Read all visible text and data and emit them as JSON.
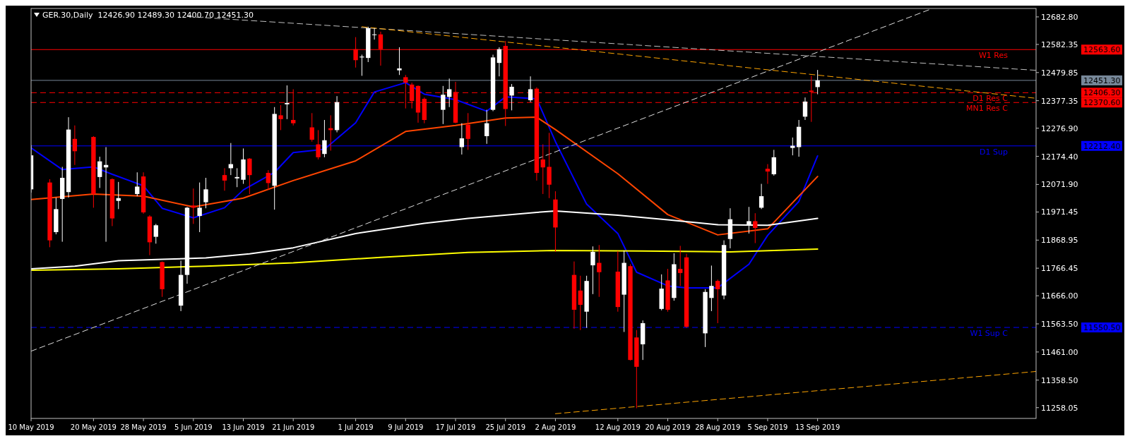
{
  "chart_data": {
    "type": "candlestick",
    "title": "GER.30,Daily  12426.90 12489.30 12400.70 12451.30",
    "x": [
      "2019-05-10",
      "2019-05-13",
      "2019-05-14",
      "2019-05-15",
      "2019-05-16",
      "2019-05-17",
      "2019-05-20",
      "2019-05-21",
      "2019-05-22",
      "2019-05-23",
      "2019-05-24",
      "2019-05-27",
      "2019-05-28",
      "2019-05-29",
      "2019-05-30",
      "2019-05-31",
      "2019-06-03",
      "2019-06-04",
      "2019-06-05",
      "2019-06-06",
      "2019-06-07",
      "2019-06-10",
      "2019-06-11",
      "2019-06-12",
      "2019-06-13",
      "2019-06-14",
      "2019-06-17",
      "2019-06-18",
      "2019-06-19",
      "2019-06-20",
      "2019-06-21",
      "2019-06-24",
      "2019-06-25",
      "2019-06-26",
      "2019-06-27",
      "2019-06-28",
      "2019-07-01",
      "2019-07-02",
      "2019-07-03",
      "2019-07-04",
      "2019-07-05",
      "2019-07-08",
      "2019-07-09",
      "2019-07-10",
      "2019-07-11",
      "2019-07-12",
      "2019-07-15",
      "2019-07-16",
      "2019-07-17",
      "2019-07-18",
      "2019-07-19",
      "2019-07-22",
      "2019-07-23",
      "2019-07-24",
      "2019-07-25",
      "2019-07-26",
      "2019-07-29",
      "2019-07-30",
      "2019-07-31",
      "2019-08-01",
      "2019-08-02",
      "2019-08-05",
      "2019-08-06",
      "2019-08-07",
      "2019-08-08",
      "2019-08-09",
      "2019-08-12",
      "2019-08-13",
      "2019-08-14",
      "2019-08-15",
      "2019-08-16",
      "2019-08-19",
      "2019-08-20",
      "2019-08-21",
      "2019-08-22",
      "2019-08-23",
      "2019-08-26",
      "2019-08-27",
      "2019-08-28",
      "2019-08-29",
      "2019-08-30",
      "2019-09-02",
      "2019-09-03",
      "2019-09-04",
      "2019-09-05",
      "2019-09-06",
      "2019-09-09",
      "2019-09-10",
      "2019-09-11",
      "2019-09-12",
      "2019-09-13"
    ],
    "ohlc": [
      [
        12054,
        12215,
        12042,
        12178
      ],
      [
        12079,
        12091,
        11843,
        11868
      ],
      [
        11898,
        12024,
        11890,
        11982
      ],
      [
        12019,
        12136,
        11863,
        12096
      ],
      [
        12044,
        12317,
        12024,
        12272
      ],
      [
        12238,
        12287,
        12143,
        12193
      ],
      [
        12245,
        12248,
        11987,
        12037
      ],
      [
        12099,
        12173,
        12059,
        12156
      ],
      [
        12134,
        12208,
        11863,
        12143
      ],
      [
        12091,
        12094,
        11920,
        11948
      ],
      [
        12012,
        12081,
        11982,
        12022
      ],
      [
        12037,
        12116,
        12029,
        12064
      ],
      [
        12101,
        12116,
        11965,
        11970
      ],
      [
        11955,
        11960,
        11814,
        11861
      ],
      [
        11881,
        11928,
        11856,
        11923
      ],
      [
        11789,
        11791,
        11662,
        11690
      ],
      [
        11630,
        11794,
        11610,
        11742
      ],
      [
        11742,
        11990,
        11710,
        11987
      ],
      [
        11995,
        12057,
        11928,
        11987
      ],
      [
        11957,
        12079,
        11898,
        11987
      ],
      [
        12007,
        12096,
        11985,
        12054
      ],
      [
        12106,
        12131,
        12049,
        12086
      ],
      [
        12131,
        12223,
        12106,
        12146
      ],
      [
        12094,
        12131,
        12062,
        12099
      ],
      [
        12089,
        12203,
        12074,
        12163
      ],
      [
        12166,
        12168,
        12037,
        12106
      ],
      [
        12114,
        12124,
        12052,
        12077
      ],
      [
        12067,
        12354,
        11980,
        12329
      ],
      [
        12324,
        12361,
        12270,
        12310
      ],
      [
        12364,
        12433,
        12310,
        12369
      ],
      [
        12307,
        12419,
        12287,
        12295
      ],
      [
        12280,
        12332,
        12228,
        12235
      ],
      [
        12218,
        12270,
        12163,
        12171
      ],
      [
        12183,
        12307,
        12171,
        12233
      ],
      [
        12277,
        12324,
        12195,
        12270
      ],
      [
        12270,
        12394,
        12262,
        12372
      ],
      [
        12565,
        12609,
        12498,
        12525
      ],
      [
        12535,
        12545,
        12468,
        12538
      ],
      [
        12533,
        12647,
        12518,
        12642
      ],
      [
        12617,
        12642,
        12600,
        12619
      ],
      [
        12619,
        12629,
        12505,
        12565
      ],
      [
        12488,
        12572,
        12471,
        12495
      ],
      [
        12463,
        12471,
        12349,
        12443
      ],
      [
        12436,
        12443,
        12349,
        12376
      ],
      [
        12431,
        12433,
        12297,
        12334
      ],
      [
        12384,
        12389,
        12295,
        12307
      ],
      [
        12344,
        12431,
        12292,
        12399
      ],
      [
        12391,
        12458,
        12354,
        12419
      ],
      [
        12409,
        12446,
        12295,
        12297
      ],
      [
        12208,
        12295,
        12181,
        12240
      ],
      [
        12290,
        12332,
        12198,
        12238
      ],
      [
        12248,
        12344,
        12220,
        12295
      ],
      [
        12344,
        12545,
        12339,
        12535
      ],
      [
        12515,
        12572,
        12466,
        12565
      ],
      [
        12577,
        12595,
        12285,
        12347
      ],
      [
        12396,
        12438,
        12342,
        12428
      ],
      [
        12379,
        12466,
        12372,
        12419
      ],
      [
        12421,
        12426,
        12086,
        12114
      ],
      [
        12163,
        12218,
        12037,
        12134
      ],
      [
        12136,
        12260,
        12022,
        12071
      ],
      [
        12017,
        12047,
        11826,
        11915
      ],
      [
        11742,
        11791,
        11546,
        11615
      ],
      [
        11685,
        11739,
        11541,
        11633
      ],
      [
        11608,
        11739,
        11549,
        11720
      ],
      [
        11777,
        11846,
        11672,
        11826
      ],
      [
        11786,
        11851,
        11662,
        11752
      ],
      [
        11754,
        11829,
        11608,
        11625
      ],
      [
        11670,
        11831,
        11534,
        11786
      ],
      [
        11774,
        11781,
        11430,
        11432
      ],
      [
        11514,
        11541,
        11256,
        11407
      ],
      [
        11489,
        11576,
        11432,
        11566
      ],
      [
        11618,
        11744,
        11613,
        11692
      ],
      [
        11722,
        11764,
        11608,
        11615
      ],
      [
        11658,
        11821,
        11648,
        11781
      ],
      [
        11764,
        11848,
        11702,
        11749
      ],
      [
        11806,
        11819,
        11549,
        11553
      ],
      [
        11529,
        11690,
        11479,
        11680
      ],
      [
        11658,
        11776,
        11610,
        11702
      ],
      [
        11720,
        11725,
        11566,
        11690
      ],
      [
        11667,
        11868,
        11653,
        11851
      ],
      [
        11873,
        11985,
        11839,
        11945
      ],
      [
        11923,
        11990,
        11893,
        11938
      ],
      [
        11938,
        11967,
        11858,
        11913
      ],
      [
        11987,
        12074,
        11982,
        12029
      ],
      [
        12129,
        12146,
        12074,
        12119
      ],
      [
        12109,
        12198,
        12104,
        12171
      ],
      [
        12205,
        12243,
        12178,
        12213
      ],
      [
        12208,
        12307,
        12173,
        12282
      ],
      [
        12319,
        12389,
        12307,
        12374
      ],
      [
        12414,
        12468,
        12300,
        12409
      ],
      [
        12426.9,
        12489.3,
        12400.7,
        12451.3
      ]
    ],
    "xlim": [
      "2019-05-10",
      "2019-10-18"
    ],
    "xticks": [
      {
        "value": "2019-05-10",
        "label": "10 May 2019"
      },
      {
        "value": "2019-05-20",
        "label": "20 May 2019"
      },
      {
        "value": "2019-05-28",
        "label": "28 May 2019"
      },
      {
        "value": "2019-06-05",
        "label": "5 Jun 2019"
      },
      {
        "value": "2019-06-13",
        "label": "13 Jun 2019"
      },
      {
        "value": "2019-06-21",
        "label": "21 Jun 2019"
      },
      {
        "value": "2019-07-01",
        "label": "1 Jul 2019"
      },
      {
        "value": "2019-07-09",
        "label": "9 Jul 2019"
      },
      {
        "value": "2019-07-17",
        "label": "17 Jul 2019"
      },
      {
        "value": "2019-07-25",
        "label": "25 Jul 2019"
      },
      {
        "value": "2019-08-02",
        "label": "2 Aug 2019"
      },
      {
        "value": "2019-08-12",
        "label": "12 Aug 2019"
      },
      {
        "value": "2019-08-20",
        "label": "20 Aug 2019"
      },
      {
        "value": "2019-08-28",
        "label": "28 Aug 2019"
      },
      {
        "value": "2019-09-05",
        "label": "5 Sep 2019"
      },
      {
        "value": "2019-09-13",
        "label": "13 Sep 2019"
      }
    ],
    "ylim": [
      11218.8,
      12713.5
    ],
    "yticks": [
      {
        "value": 12682.8,
        "label": "12682.80"
      },
      {
        "value": 12582.35,
        "label": "12582.35"
      },
      {
        "value": 12479.85,
        "label": "12479.85"
      },
      {
        "value": 12377.35,
        "label": "12377.35"
      },
      {
        "value": 12276.9,
        "label": "12276.90"
      },
      {
        "value": 12174.4,
        "label": "12174.40"
      },
      {
        "value": 12071.9,
        "label": "12071.90"
      },
      {
        "value": 11971.45,
        "label": "11971.45"
      },
      {
        "value": 11868.95,
        "label": "11868.95"
      },
      {
        "value": 11766.45,
        "label": "11766.45"
      },
      {
        "value": 11666,
        "label": "11666.00"
      },
      {
        "value": 11563.5,
        "label": "11563.50"
      },
      {
        "value": 11461,
        "label": "11461.00"
      },
      {
        "value": 11358.5,
        "label": "11358.50"
      },
      {
        "value": 11258.05,
        "label": "11258.05"
      }
    ],
    "series": [
      {
        "type": "line",
        "color": "#0000ff",
        "x": [
          "2019-05-10",
          "2019-05-15",
          "2019-05-20",
          "2019-05-23",
          "2019-05-28",
          "2019-05-31",
          "2019-06-05",
          "2019-06-10",
          "2019-06-13",
          "2019-06-18",
          "2019-06-21",
          "2019-06-26",
          "2019-07-01",
          "2019-07-04",
          "2019-07-09",
          "2019-07-12",
          "2019-07-17",
          "2019-07-22",
          "2019-07-25",
          "2019-07-30",
          "2019-08-02",
          "2019-08-07",
          "2019-08-12",
          "2019-08-15",
          "2019-08-20",
          "2019-08-23",
          "2019-08-28",
          "2019-09-02",
          "2019-09-05",
          "2019-09-10",
          "2019-09-13"
        ],
        "values": [
          12205,
          12126,
          12136,
          12109,
          12067,
          11985,
          11950,
          11987,
          12052,
          12116,
          12188,
          12200,
          12297,
          12409,
          12443,
          12401,
          12381,
          12339,
          12391,
          12384,
          12228,
          12000,
          11893,
          11752,
          11702,
          11695,
          11695,
          11781,
          11886,
          12010,
          12176
        ]
      },
      {
        "type": "line",
        "color": "#ff4500",
        "x": [
          "2019-05-10",
          "2019-05-20",
          "2019-05-28",
          "2019-06-05",
          "2019-06-13",
          "2019-06-21",
          "2019-07-01",
          "2019-07-09",
          "2019-07-17",
          "2019-07-25",
          "2019-07-30",
          "2019-08-02",
          "2019-08-12",
          "2019-08-20",
          "2019-08-28",
          "2019-09-05",
          "2019-09-13"
        ],
        "values": [
          12017,
          12037,
          12029,
          11990,
          12022,
          12086,
          12158,
          12265,
          12287,
          12314,
          12317,
          12272,
          12111,
          11962,
          11888,
          11910,
          12101
        ]
      },
      {
        "type": "line",
        "color": "#ffffff",
        "x": [
          "2019-05-10",
          "2019-05-17",
          "2019-05-24",
          "2019-05-31",
          "2019-06-07",
          "2019-06-14",
          "2019-06-21",
          "2019-07-01",
          "2019-07-12",
          "2019-07-19",
          "2019-07-30",
          "2019-08-02",
          "2019-08-12",
          "2019-08-20",
          "2019-08-28",
          "2019-09-05",
          "2019-09-13"
        ],
        "values": [
          11764,
          11774,
          11794,
          11799,
          11804,
          11819,
          11841,
          11893,
          11930,
          11948,
          11970,
          11975,
          11960,
          11943,
          11925,
          11923,
          11948
        ]
      },
      {
        "type": "line",
        "color": "#ffff00",
        "x": [
          "2019-05-10",
          "2019-05-24",
          "2019-06-07",
          "2019-06-21",
          "2019-07-05",
          "2019-07-19",
          "2019-08-02",
          "2019-08-16",
          "2019-08-30",
          "2019-09-13"
        ],
        "values": [
          11759,
          11764,
          11774,
          11786,
          11806,
          11824,
          11831,
          11829,
          11826,
          11836
        ]
      },
      {
        "type": "line",
        "color": "#e0e0e0",
        "line_style": "dashed",
        "x": [
          "2019-05-10",
          "2019-10-01"
        ],
        "values": [
          11464,
          12710
        ]
      },
      {
        "type": "line",
        "color": "#c0c0c0",
        "line_style": "dashed",
        "x": [
          "2019-06-04",
          "2019-10-18"
        ],
        "values": [
          12684,
          12488
        ]
      },
      {
        "type": "line",
        "color": "#ffa500",
        "line_style": "dashed",
        "x": [
          "2019-07-02",
          "2019-10-18"
        ],
        "values": [
          12647,
          12386
        ]
      },
      {
        "type": "line",
        "color": "#ffa500",
        "line_style": "dashed",
        "x": [
          "2019-08-02",
          "2019-10-18"
        ],
        "values": [
          11236,
          11390
        ]
      }
    ],
    "annotations": [
      "12563.60",
      "12451.30",
      "12406.30",
      "12370.60",
      "12212.40",
      "11550.50"
    ],
    "ref_lines": [
      {
        "axis": "y",
        "value": 12563.6,
        "label": "W1 Res",
        "color": "#ff0000",
        "line_style": "solid"
      },
      {
        "axis": "y",
        "value": 12451.3,
        "label": null,
        "color": "#778899",
        "line_style": "solid"
      },
      {
        "axis": "y",
        "value": 12406.3,
        "label": "D1 Res C",
        "color": "#ff0000",
        "line_style": "dashed"
      },
      {
        "axis": "y",
        "value": 12370.6,
        "label": "MN1 Res C",
        "color": "#ff0000",
        "line_style": "dashed"
      },
      {
        "axis": "y",
        "value": 12212.4,
        "label": "D1 Sup",
        "color": "#0000ff",
        "line_style": "solid"
      },
      {
        "axis": "y",
        "value": 11550.5,
        "label": "W1 Sup C",
        "color": "#0000ff",
        "line_style": "dashed"
      }
    ]
  }
}
